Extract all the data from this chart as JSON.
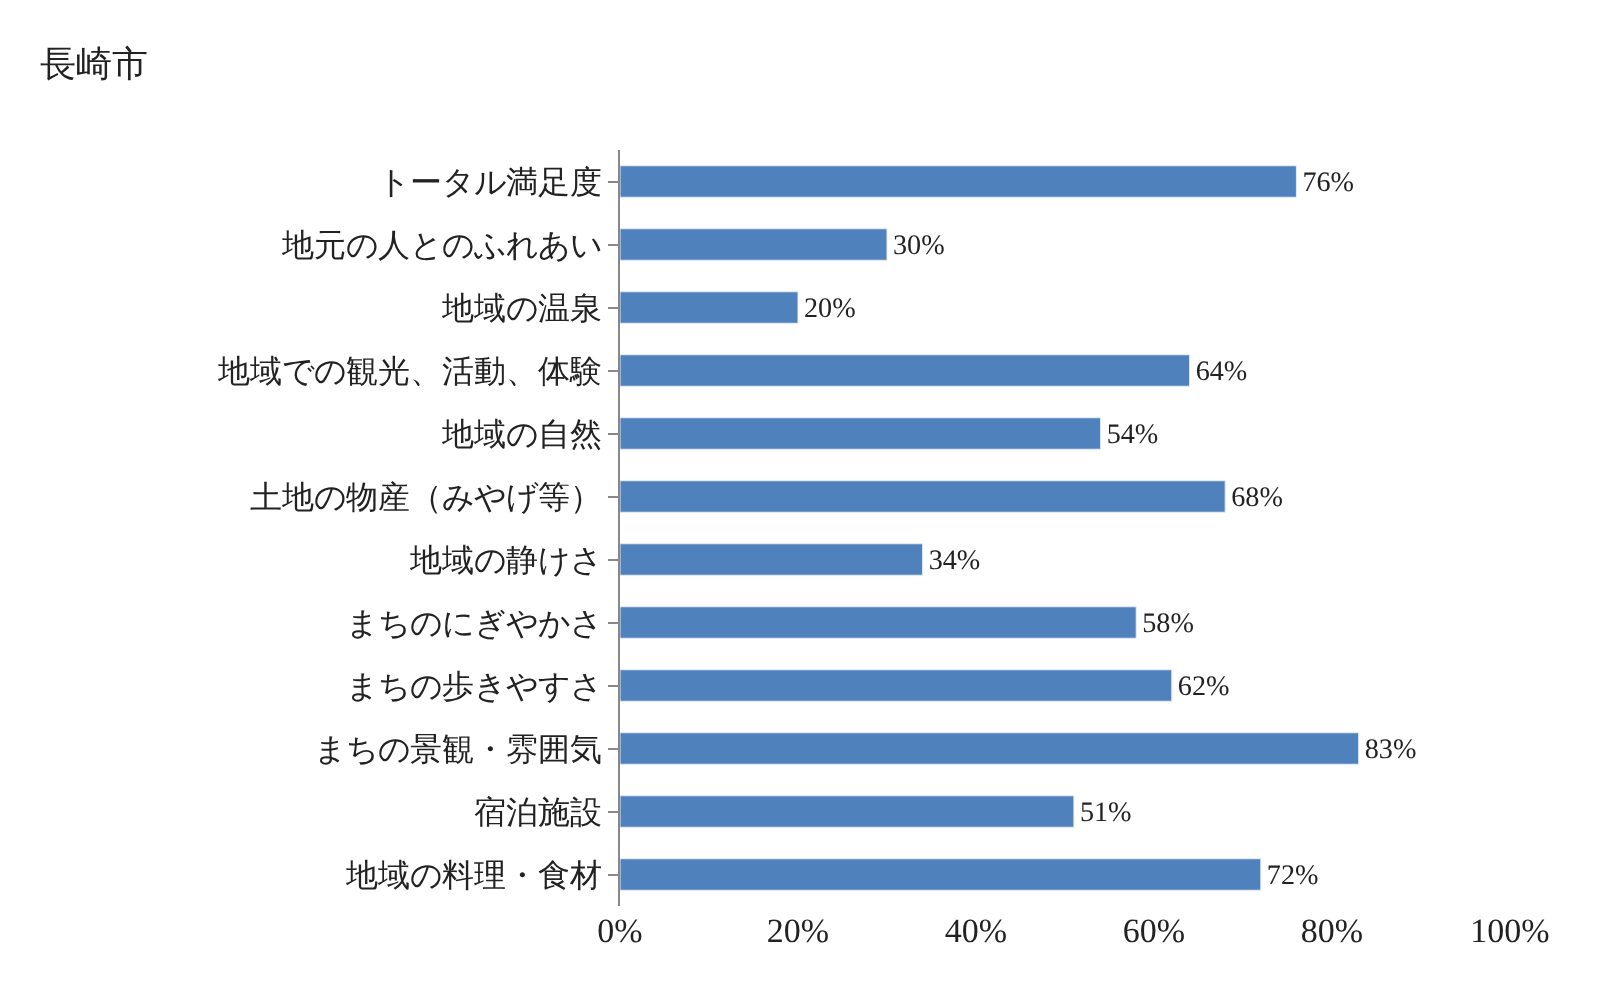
{
  "chart_data": {
    "type": "bar",
    "orientation": "horizontal",
    "title": "長崎市",
    "categories": [
      "トータル満足度",
      "地元の人とのふれあい",
      "地域の温泉",
      "地域での観光、活動、体験",
      "地域の自然",
      "土地の物産（みやげ等）",
      "地域の静けさ",
      "まちのにぎやかさ",
      "まちの歩きやすさ",
      "まちの景観・雰囲気",
      "宿泊施設",
      "地域の料理・食材"
    ],
    "values": [
      76,
      30,
      20,
      64,
      54,
      68,
      34,
      58,
      62,
      83,
      51,
      72
    ],
    "value_labels": [
      "76%",
      "30%",
      "20%",
      "64%",
      "54%",
      "68%",
      "34%",
      "58%",
      "62%",
      "83%",
      "51%",
      "72%"
    ],
    "color": "#4f81bd",
    "xlim": [
      0,
      100
    ],
    "xticks": [
      {
        "value": 0,
        "label": "0%"
      },
      {
        "value": 20,
        "label": "20%"
      },
      {
        "value": 40,
        "label": "40%"
      },
      {
        "value": 60,
        "label": "60%"
      },
      {
        "value": 80,
        "label": "80%"
      },
      {
        "value": 100,
        "label": "100%"
      }
    ],
    "data_labels": false
  }
}
